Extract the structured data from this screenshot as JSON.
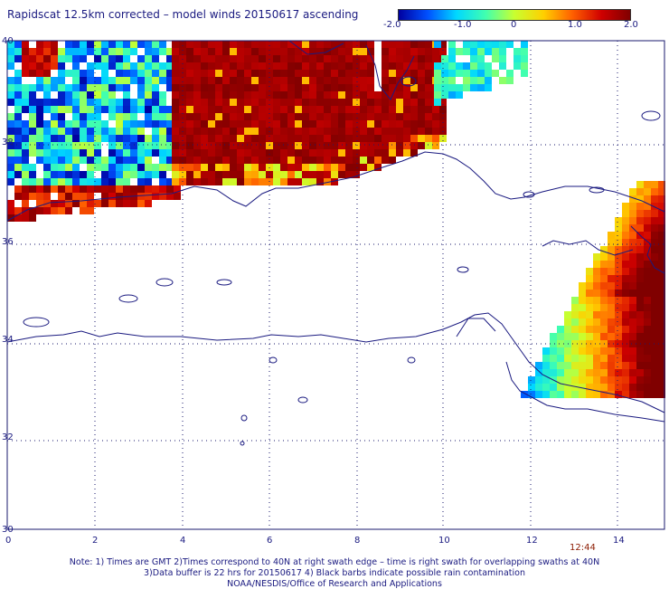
{
  "title": "Rapidscat 12.5km corrected – model winds 20150617 ascending",
  "colorbar": {
    "labels": [
      "-2.0",
      "-1.0",
      "0",
      "1.0",
      "2.0"
    ],
    "stops": [
      "#0000a0",
      "#0050ff",
      "#00d8ff",
      "#40ffb0",
      "#c8ff30",
      "#ffd000",
      "#ff6000",
      "#d00000",
      "#800000"
    ]
  },
  "lat_labels": [
    "40",
    "38",
    "36",
    "34",
    "32",
    "30"
  ],
  "lon_labels": [
    "0",
    "2",
    "4",
    "6",
    "8",
    "10",
    "12",
    "14"
  ],
  "timestamp": "12:44",
  "notes": [
    "Note: 1) Times are GMT 2)Times correspond to 40N at right swath edge – time is right swath for overlapping swaths at 40N",
    "3)Data buffer is 22 hrs for 20150617 4) Black barbs indicate possible rain contamination",
    "NOAA/NESDIS/Office of Research and Applications"
  ]
}
